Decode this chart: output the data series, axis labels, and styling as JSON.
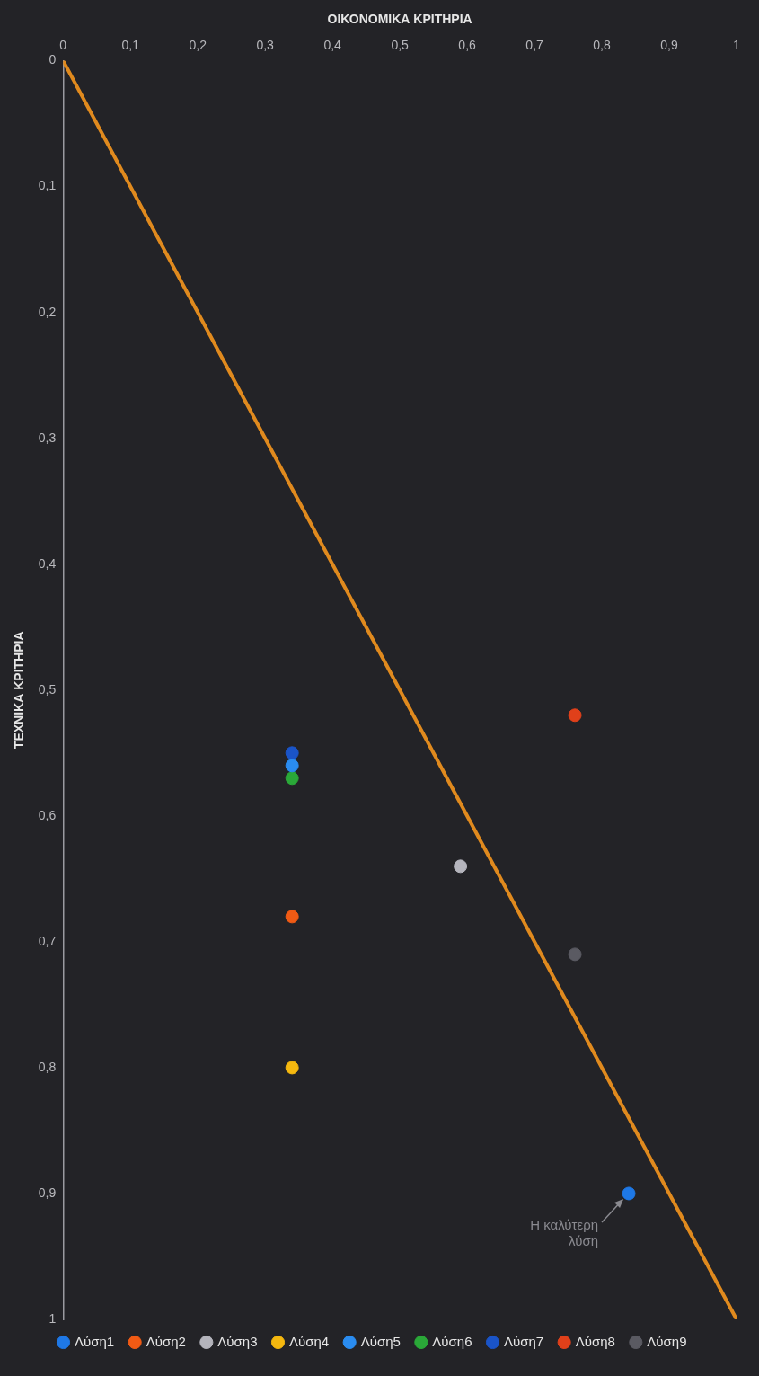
{
  "chart_data": {
    "type": "scatter",
    "xlabel": "ΟΙΚΟΝΟΜΙΚΑ ΚΡΙΤΗΡΙΑ",
    "ylabel": "ΤΕΧΝΙΚΑ ΚΡΙΤΗΡΙΑ",
    "xlim": [
      0,
      1
    ],
    "ylim": [
      1,
      0
    ],
    "xticks": [
      {
        "value": 0,
        "label": "0"
      },
      {
        "value": 0.1,
        "label": "0,1"
      },
      {
        "value": 0.2,
        "label": "0,2"
      },
      {
        "value": 0.3,
        "label": "0,3"
      },
      {
        "value": 0.4,
        "label": "0,4"
      },
      {
        "value": 0.5,
        "label": "0,5"
      },
      {
        "value": 0.6,
        "label": "0,6"
      },
      {
        "value": 0.7,
        "label": "0,7"
      },
      {
        "value": 0.8,
        "label": "0,8"
      },
      {
        "value": 0.9,
        "label": "0,9"
      },
      {
        "value": 1,
        "label": "1"
      }
    ],
    "yticks": [
      {
        "value": 0,
        "label": "0"
      },
      {
        "value": 0.1,
        "label": "0,1"
      },
      {
        "value": 0.2,
        "label": "0,2"
      },
      {
        "value": 0.3,
        "label": "0,3"
      },
      {
        "value": 0.4,
        "label": "0,4"
      },
      {
        "value": 0.5,
        "label": "0,5"
      },
      {
        "value": 0.6,
        "label": "0,6"
      },
      {
        "value": 0.7,
        "label": "0,7"
      },
      {
        "value": 0.8,
        "label": "0,8"
      },
      {
        "value": 0.9,
        "label": "0,9"
      },
      {
        "value": 1,
        "label": "1"
      }
    ],
    "grid": false,
    "legend": "bottom",
    "marker": "circle",
    "series": [
      {
        "name": "Λύση1",
        "color": "#1e78e6",
        "x": [
          0.84
        ],
        "values": [
          0.9
        ]
      },
      {
        "name": "Λύση2",
        "color": "#f05a14",
        "x": [
          0.34
        ],
        "values": [
          0.68
        ]
      },
      {
        "name": "Λύση3",
        "color": "#b4b4bc",
        "x": [
          0.59
        ],
        "values": [
          0.64
        ]
      },
      {
        "name": "Λύση4",
        "color": "#f5b80f",
        "x": [
          0.34
        ],
        "values": [
          0.8
        ]
      },
      {
        "name": "Λύση5",
        "color": "#2a8cf0",
        "x": [
          0.34
        ],
        "values": [
          0.56
        ]
      },
      {
        "name": "Λύση6",
        "color": "#2aa838",
        "x": [
          0.34
        ],
        "values": [
          0.57
        ]
      },
      {
        "name": "Λύση7",
        "color": "#1a54c8",
        "x": [
          0.34
        ],
        "values": [
          0.55
        ]
      },
      {
        "name": "Λύση8",
        "color": "#e0401a",
        "x": [
          0.76
        ],
        "values": [
          0.52
        ]
      },
      {
        "name": "Λύση9",
        "color": "#5a5a62",
        "x": [
          0.76
        ],
        "values": [
          0.71
        ]
      },
      {
        "type": "line",
        "color": "#e08a1e",
        "x": [
          0,
          1
        ],
        "values": [
          0,
          1
        ],
        "marker": "none"
      }
    ],
    "annotations": [
      {
        "text": "Η καλύτερη λύση",
        "x": 0.84,
        "y": 0.9
      }
    ]
  }
}
